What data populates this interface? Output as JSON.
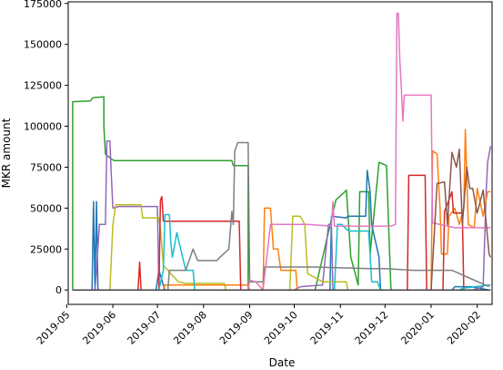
{
  "chart_data": {
    "type": "line",
    "xlabel": "Date",
    "ylabel": "MKR amount",
    "x_type": "date",
    "xlim": [
      "2019-05-02",
      "2020-02-11"
    ],
    "ylim": [
      -8800,
      176000
    ],
    "grid": false,
    "legend": "none",
    "yticks": [
      0,
      25000,
      50000,
      75000,
      100000,
      125000,
      150000,
      175000
    ],
    "ytick_labels": [
      "0",
      "25000",
      "50000",
      "75000",
      "100000",
      "125000",
      "150000",
      "175000"
    ],
    "xticks": [
      "2019-05-01",
      "2019-06-01",
      "2019-07-01",
      "2019-08-01",
      "2019-09-01",
      "2019-10-01",
      "2019-11-01",
      "2019-12-01",
      "2020-01-01",
      "2020-02-01"
    ],
    "xtick_labels": [
      "2019-05",
      "2019-06",
      "2019-07",
      "2019-08",
      "2019-09",
      "2019-10",
      "2019-11",
      "2019-12",
      "2020-01",
      "2020-02"
    ],
    "series": [
      {
        "color": "#2ca02c",
        "points": [
          [
            "2019-05-05",
            0
          ],
          [
            "2019-05-05",
            115000
          ],
          [
            "2019-05-17",
            115500
          ],
          [
            "2019-05-18",
            117000
          ],
          [
            "2019-05-19",
            117500
          ],
          [
            "2019-05-26",
            118000
          ],
          [
            "2019-05-26",
            100000
          ],
          [
            "2019-05-27",
            83000
          ],
          [
            "2019-05-31",
            80000
          ],
          [
            "2019-06-02",
            79000
          ],
          [
            "2019-07-15",
            79000
          ],
          [
            "2019-08-20",
            79000
          ],
          [
            "2019-08-21",
            76000
          ],
          [
            "2019-08-31",
            76000
          ],
          [
            "2019-08-31",
            0
          ],
          [
            "2019-10-15",
            0
          ],
          [
            "2019-10-29",
            55000
          ],
          [
            "2019-11-04",
            60000
          ],
          [
            "2019-11-05",
            61000
          ],
          [
            "2019-11-08",
            20000
          ],
          [
            "2019-11-13",
            3000
          ],
          [
            "2019-11-14",
            60000
          ],
          [
            "2019-11-20",
            60000
          ],
          [
            "2019-11-21",
            22000
          ],
          [
            "2019-11-27",
            78000
          ],
          [
            "2019-12-02",
            76000
          ],
          [
            "2019-12-05",
            0
          ],
          [
            "2020-02-09",
            0
          ]
        ]
      },
      {
        "color": "#1f77b4",
        "points": [
          [
            "2019-05-05",
            0
          ],
          [
            "2019-05-18",
            0
          ],
          [
            "2019-05-19",
            54000
          ],
          [
            "2019-05-20",
            0
          ],
          [
            "2019-05-21",
            54000
          ],
          [
            "2019-05-22",
            0
          ],
          [
            "2019-06-30",
            0
          ],
          [
            "2019-07-02",
            12000
          ],
          [
            "2019-07-05",
            3000
          ],
          [
            "2019-07-06",
            0
          ],
          [
            "2019-10-25",
            0
          ],
          [
            "2019-10-26",
            45000
          ],
          [
            "2019-11-05",
            44000
          ],
          [
            "2019-11-06",
            45000
          ],
          [
            "2019-11-18",
            45000
          ],
          [
            "2019-11-19",
            73000
          ],
          [
            "2019-11-21",
            60000
          ],
          [
            "2019-11-22",
            40000
          ],
          [
            "2019-11-27",
            20000
          ],
          [
            "2019-11-28",
            0
          ],
          [
            "2020-01-15",
            0
          ],
          [
            "2020-01-17",
            2000
          ],
          [
            "2020-01-28",
            2000
          ],
          [
            "2020-02-09",
            0
          ]
        ]
      },
      {
        "color": "#9467bd",
        "points": [
          [
            "2019-05-05",
            0
          ],
          [
            "2019-05-20",
            0
          ],
          [
            "2019-05-21",
            12000
          ],
          [
            "2019-05-23",
            40000
          ],
          [
            "2019-05-27",
            40000
          ],
          [
            "2019-05-28",
            91000
          ],
          [
            "2019-05-30",
            91000
          ],
          [
            "2019-05-31",
            70000
          ],
          [
            "2019-06-01",
            50000
          ],
          [
            "2019-06-05",
            51000
          ],
          [
            "2019-06-30",
            51000
          ],
          [
            "2019-07-01",
            51000
          ],
          [
            "2019-07-02",
            0
          ],
          [
            "2019-10-01",
            0
          ],
          [
            "2019-10-05",
            2000
          ],
          [
            "2019-10-20",
            3000
          ],
          [
            "2019-10-24",
            40000
          ],
          [
            "2019-10-26",
            40000
          ],
          [
            "2019-10-27",
            0
          ],
          [
            "2020-01-29",
            0
          ],
          [
            "2020-02-05",
            2000
          ],
          [
            "2020-02-07",
            60000
          ],
          [
            "2020-02-08",
            78000
          ],
          [
            "2020-02-10",
            88000
          ]
        ]
      },
      {
        "color": "#bcbd22",
        "points": [
          [
            "2019-05-05",
            0
          ],
          [
            "2019-05-30",
            0
          ],
          [
            "2019-06-01",
            40000
          ],
          [
            "2019-06-03",
            52000
          ],
          [
            "2019-06-20",
            52000
          ],
          [
            "2019-06-21",
            44000
          ],
          [
            "2019-07-02",
            44000
          ],
          [
            "2019-07-03",
            37000
          ],
          [
            "2019-07-05",
            15000
          ],
          [
            "2019-07-15",
            5000
          ],
          [
            "2019-07-20",
            4000
          ],
          [
            "2019-08-15",
            4000
          ],
          [
            "2019-08-16",
            0
          ],
          [
            "2019-09-28",
            0
          ],
          [
            "2019-09-30",
            45000
          ],
          [
            "2019-10-05",
            45000
          ],
          [
            "2019-10-08",
            40000
          ],
          [
            "2019-10-10",
            10000
          ],
          [
            "2019-10-20",
            5000
          ],
          [
            "2019-11-05",
            5000
          ],
          [
            "2019-11-06",
            0
          ],
          [
            "2020-02-09",
            0
          ]
        ]
      },
      {
        "color": "#ff7f0e",
        "points": [
          [
            "2019-05-05",
            0
          ],
          [
            "2019-07-05",
            0
          ],
          [
            "2019-07-06",
            3000
          ],
          [
            "2019-08-31",
            3000
          ],
          [
            "2019-09-01",
            0
          ],
          [
            "2019-09-10",
            0
          ],
          [
            "2019-09-11",
            50000
          ],
          [
            "2019-09-15",
            50000
          ],
          [
            "2019-09-17",
            25000
          ],
          [
            "2019-09-20",
            25000
          ],
          [
            "2019-09-22",
            12000
          ],
          [
            "2019-10-02",
            12000
          ],
          [
            "2019-10-03",
            0
          ],
          [
            "2020-01-01",
            0
          ],
          [
            "2020-01-02",
            85000
          ],
          [
            "2020-01-05",
            83000
          ],
          [
            "2020-01-07",
            50000
          ],
          [
            "2020-01-08",
            22000
          ],
          [
            "2020-01-12",
            22000
          ],
          [
            "2020-01-13",
            45000
          ],
          [
            "2020-01-17",
            50000
          ],
          [
            "2020-01-20",
            40000
          ],
          [
            "2020-01-23",
            50000
          ],
          [
            "2020-01-24",
            98000
          ],
          [
            "2020-01-26",
            40000
          ],
          [
            "2020-01-30",
            38000
          ],
          [
            "2020-02-01",
            62000
          ],
          [
            "2020-02-05",
            45000
          ],
          [
            "2020-02-08",
            60000
          ],
          [
            "2020-02-10",
            60000
          ]
        ]
      },
      {
        "color": "#d62728",
        "points": [
          [
            "2019-05-05",
            0
          ],
          [
            "2019-06-18",
            0
          ],
          [
            "2019-06-19",
            17000
          ],
          [
            "2019-06-20",
            0
          ],
          [
            "2019-07-02",
            0
          ],
          [
            "2019-07-03",
            55000
          ],
          [
            "2019-07-04",
            57000
          ],
          [
            "2019-07-05",
            42000
          ],
          [
            "2019-08-25",
            42000
          ],
          [
            "2019-08-26",
            0
          ],
          [
            "2019-11-15",
            0
          ],
          [
            "2019-12-16",
            0
          ],
          [
            "2019-12-17",
            70000
          ],
          [
            "2019-12-28",
            70000
          ],
          [
            "2019-12-29",
            0
          ],
          [
            "2020-01-09",
            0
          ],
          [
            "2020-01-10",
            48000
          ],
          [
            "2020-01-15",
            60000
          ],
          [
            "2020-01-16",
            47000
          ],
          [
            "2020-01-22",
            47000
          ],
          [
            "2020-01-23",
            0
          ],
          [
            "2020-02-09",
            0
          ]
        ]
      },
      {
        "color": "#17becf",
        "points": [
          [
            "2019-05-05",
            0
          ],
          [
            "2019-07-02",
            0
          ],
          [
            "2019-07-05",
            12000
          ],
          [
            "2019-07-06",
            46000
          ],
          [
            "2019-07-09",
            46000
          ],
          [
            "2019-07-10",
            29000
          ],
          [
            "2019-07-11",
            20000
          ],
          [
            "2019-07-14",
            35000
          ],
          [
            "2019-07-20",
            12000
          ],
          [
            "2019-07-25",
            12000
          ],
          [
            "2019-07-26",
            0
          ],
          [
            "2019-10-28",
            0
          ],
          [
            "2019-10-30",
            40000
          ],
          [
            "2019-11-02",
            40000
          ],
          [
            "2019-11-05",
            37000
          ],
          [
            "2019-11-07",
            36000
          ],
          [
            "2019-11-20",
            36000
          ],
          [
            "2019-11-22",
            5000
          ],
          [
            "2019-11-26",
            5000
          ],
          [
            "2019-11-28",
            0
          ],
          [
            "2020-01-20",
            0
          ],
          [
            "2020-01-22",
            1000
          ],
          [
            "2020-02-09",
            3000
          ],
          [
            "2020-02-10",
            3000
          ]
        ]
      },
      {
        "color": "#7f7f7f",
        "points": [
          [
            "2019-05-05",
            0
          ],
          [
            "2019-07-08",
            0
          ],
          [
            "2019-07-09",
            12000
          ],
          [
            "2019-07-20",
            12000
          ],
          [
            "2019-07-25",
            25000
          ],
          [
            "2019-07-28",
            18000
          ],
          [
            "2019-08-10",
            18000
          ],
          [
            "2019-08-12",
            20000
          ],
          [
            "2019-08-18",
            25000
          ],
          [
            "2019-08-20",
            48000
          ],
          [
            "2019-08-21",
            40000
          ],
          [
            "2019-08-22",
            85000
          ],
          [
            "2019-08-24",
            90000
          ],
          [
            "2019-08-31",
            90000
          ],
          [
            "2019-09-01",
            5000
          ],
          [
            "2019-09-10",
            5000
          ],
          [
            "2019-09-11",
            14000
          ],
          [
            "2019-10-15",
            14000
          ],
          [
            "2019-11-20",
            13000
          ],
          [
            "2019-12-01",
            13000
          ],
          [
            "2019-12-20",
            12000
          ],
          [
            "2020-01-15",
            12000
          ],
          [
            "2020-02-09",
            2000
          ]
        ]
      },
      {
        "color": "#e377c2",
        "points": [
          [
            "2019-05-05",
            0
          ],
          [
            "2019-08-31",
            0
          ],
          [
            "2019-09-01",
            6000
          ],
          [
            "2019-09-05",
            5000
          ],
          [
            "2019-09-10",
            0
          ],
          [
            "2019-09-15",
            40000
          ],
          [
            "2019-10-01",
            40000
          ],
          [
            "2019-10-10",
            40000
          ],
          [
            "2019-10-26",
            39000
          ],
          [
            "2019-10-27",
            54000
          ],
          [
            "2019-10-28",
            39000
          ],
          [
            "2019-12-05",
            39000
          ],
          [
            "2019-12-08",
            40000
          ],
          [
            "2019-12-09",
            169000
          ],
          [
            "2019-12-10",
            169000
          ],
          [
            "2019-12-11",
            140000
          ],
          [
            "2019-12-12",
            123000
          ],
          [
            "2019-12-13",
            103000
          ],
          [
            "2019-12-14",
            119000
          ],
          [
            "2020-01-01",
            119000
          ],
          [
            "2020-01-02",
            41000
          ],
          [
            "2020-01-17",
            38000
          ],
          [
            "2020-02-10",
            38000
          ]
        ]
      },
      {
        "color": "#8c564b",
        "points": [
          [
            "2019-05-05",
            0
          ],
          [
            "2019-11-30",
            0
          ],
          [
            "2019-12-01",
            0
          ],
          [
            "2020-01-01",
            0
          ],
          [
            "2020-01-05",
            65000
          ],
          [
            "2020-01-10",
            66000
          ],
          [
            "2020-01-12",
            40000
          ],
          [
            "2020-01-15",
            84000
          ],
          [
            "2020-01-18",
            75000
          ],
          [
            "2020-01-20",
            86000
          ],
          [
            "2020-01-22",
            40000
          ],
          [
            "2020-01-25",
            75000
          ],
          [
            "2020-01-27",
            62000
          ],
          [
            "2020-01-29",
            62000
          ],
          [
            "2020-02-01",
            47000
          ],
          [
            "2020-02-05",
            61000
          ],
          [
            "2020-02-09",
            22000
          ],
          [
            "2020-02-10",
            20000
          ]
        ]
      },
      {
        "color": "#444444",
        "points": [
          [
            "2019-05-05",
            0
          ],
          [
            "2019-11-28",
            0
          ],
          [
            "2019-12-05",
            0
          ],
          [
            "2020-02-09",
            0
          ],
          [
            "2020-02-10",
            0
          ]
        ]
      }
    ]
  }
}
